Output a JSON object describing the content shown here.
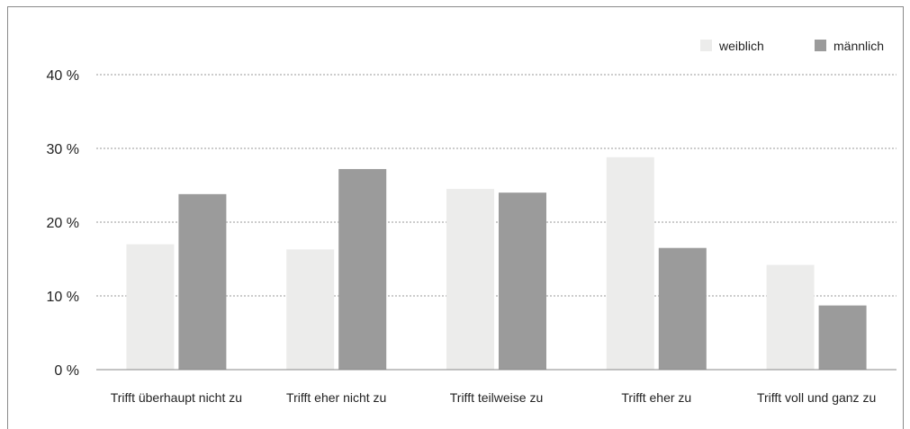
{
  "chart_data": {
    "type": "bar",
    "categories": [
      "Trifft überhaupt nicht zu",
      "Trifft eher nicht zu",
      "Trifft teilweise zu",
      "Trifft eher zu",
      "Trifft voll und ganz zu"
    ],
    "series": [
      {
        "name": "weiblich",
        "values": [
          17.0,
          16.3,
          24.5,
          28.8,
          14.2
        ],
        "color": "#ececeb"
      },
      {
        "name": "männlich",
        "values": [
          23.8,
          27.2,
          24.0,
          16.5,
          8.7
        ],
        "color": "#9b9b9b"
      }
    ],
    "yticks": [
      "0 %",
      "10 %",
      "20 %",
      "30 %",
      "40 %"
    ],
    "ylim": [
      0,
      40
    ],
    "grid": true,
    "legend_position": "top-right"
  }
}
